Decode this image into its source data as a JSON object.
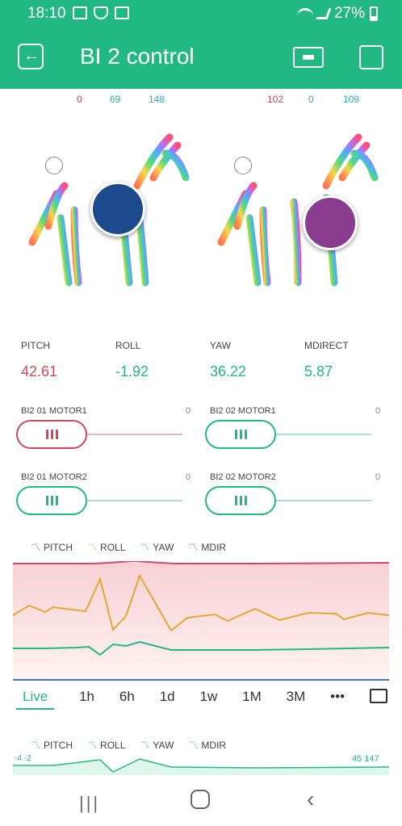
{
  "status": {
    "time": "18:10",
    "battery": "27%"
  },
  "app": {
    "title": "BI 2 control"
  },
  "zebra1": {
    "r": "0",
    "g": "69",
    "b": "148",
    "color": "#1c4a8c"
  },
  "zebra2": {
    "r": "102",
    "g": "0",
    "b": "109",
    "color": "#8a3c8e"
  },
  "values": [
    {
      "label": "PITCH",
      "value": "42.61",
      "color": "#d0485c"
    },
    {
      "label": "ROLL",
      "value": "-1.92",
      "color": "#22b883"
    },
    {
      "label": "YAW",
      "value": "36.22",
      "color": "#22b883"
    },
    {
      "label": "MDIRECT",
      "value": "5.87",
      "color": "#22b883"
    }
  ],
  "sliders": [
    {
      "label": "BI2 01 MOTOR1",
      "value": "0",
      "color": "#d0485c"
    },
    {
      "label": "BI2 02 MOTOR1",
      "value": "0",
      "color": "#22b883"
    },
    {
      "label": "BI2 01 MOTOR2",
      "value": "0",
      "color": "#22b883"
    },
    {
      "label": "BI2 02 MOTOR2",
      "value": "0",
      "color": "#22b883"
    }
  ],
  "legend": [
    {
      "label": "PITCH",
      "color": "#d0485c"
    },
    {
      "label": "ROLL",
      "color": "#e8a830"
    },
    {
      "label": "YAW",
      "color": "#22b883"
    },
    {
      "label": "MDIR",
      "color": "#4a6fd0"
    }
  ],
  "ranges": [
    "Live",
    "1h",
    "6h",
    "1d",
    "1w",
    "1M",
    "3M",
    "•••"
  ],
  "mini": {
    "left": "-4 -2",
    "right": "45 147"
  }
}
